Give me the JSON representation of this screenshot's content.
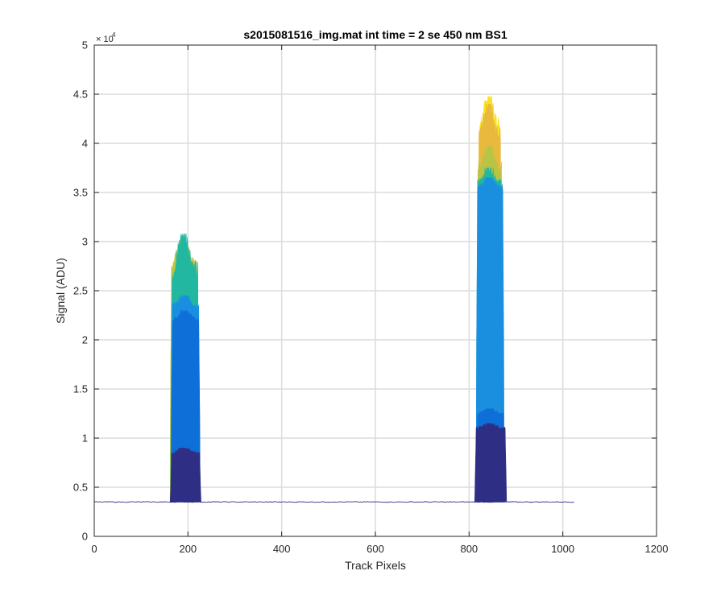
{
  "chart_data": {
    "type": "area",
    "title": "s2015081516_img.mat int time = 2 se  450 nm BS1",
    "xlabel": "Track Pixels",
    "ylabel": "Signal (ADU)",
    "xlim": [
      0,
      1200
    ],
    "ylim": [
      0,
      50000
    ],
    "x_ticks": [
      0,
      200,
      400,
      600,
      800,
      1000,
      1200
    ],
    "x_tick_labels": [
      "0",
      "200",
      "400",
      "600",
      "800",
      "1000",
      "1200"
    ],
    "y_ticks": [
      0,
      5000,
      10000,
      15000,
      20000,
      25000,
      30000,
      35000,
      40000,
      45000,
      50000
    ],
    "y_tick_labels": [
      "0",
      "0.5",
      "1",
      "1.5",
      "2",
      "2.5",
      "3",
      "3.5",
      "4",
      "4.5",
      "5"
    ],
    "y_exponent_label": "× 10",
    "y_exponent_power": "4",
    "grid": true,
    "baseline": {
      "value": 3500,
      "x_range": [
        0,
        1024
      ]
    },
    "series": [
      {
        "color": "#f9e11e",
        "peaks": [
          {
            "x_start": 162,
            "x_end": 220,
            "level": 27500,
            "max": 29500
          },
          {
            "x_start": 820,
            "x_end": 868,
            "level": 42000,
            "max": 44800
          }
        ]
      },
      {
        "color": "#e8b93d",
        "peaks": [
          {
            "x_start": 162,
            "x_end": 222,
            "level": 27200,
            "max": 29800
          },
          {
            "x_start": 818,
            "x_end": 870,
            "level": 41000,
            "max": 44000
          }
        ]
      },
      {
        "color": "#b8c445",
        "peaks": [
          {
            "x_start": 162,
            "x_end": 223,
            "level": 27500,
            "max": 30200
          },
          {
            "x_start": 816,
            "x_end": 872,
            "level": 37500,
            "max": 39800
          }
        ]
      },
      {
        "color": "#21b7a0",
        "peaks": [
          {
            "x_start": 163,
            "x_end": 224,
            "level": 27000,
            "max": 30800
          },
          {
            "x_start": 815,
            "x_end": 874,
            "level": 36000,
            "max": 37500
          }
        ]
      },
      {
        "color": "#1a8fe0",
        "peaks": [
          {
            "x_start": 164,
            "x_end": 226,
            "level": 23500,
            "max": 24500
          },
          {
            "x_start": 815,
            "x_end": 875,
            "level": 35500,
            "max": 36500
          }
        ]
      },
      {
        "color": "#0f6fd8",
        "peaks": [
          {
            "x_start": 164,
            "x_end": 226,
            "level": 22000,
            "max": 23000
          },
          {
            "x_start": 815,
            "x_end": 876,
            "level": 12500,
            "max": 13000
          }
        ]
      },
      {
        "color": "#2e2f84",
        "peaks": [
          {
            "x_start": 162,
            "x_end": 228,
            "level": 8500,
            "max": 9000
          },
          {
            "x_start": 812,
            "x_end": 880,
            "level": 11000,
            "max": 11500
          }
        ]
      }
    ]
  }
}
